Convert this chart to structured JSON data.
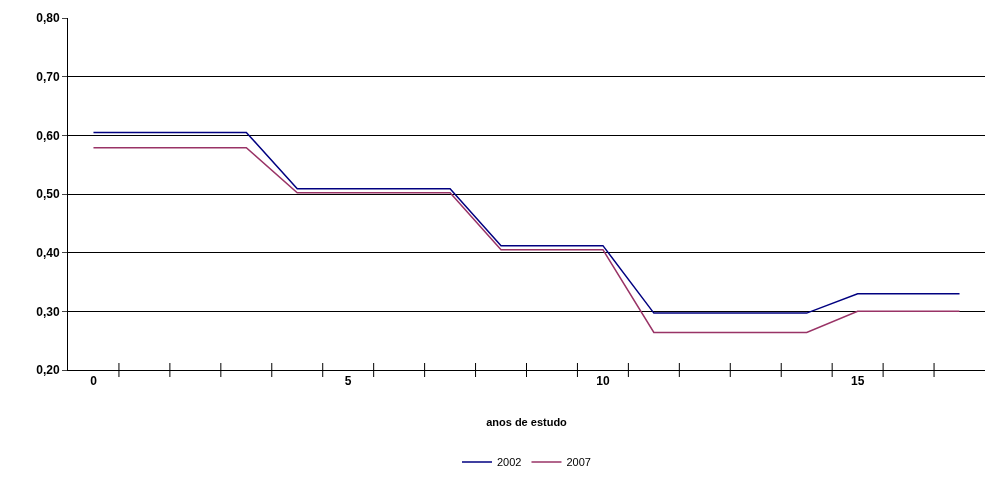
{
  "chart_data": {
    "type": "line",
    "xlabel": "anos de estudo",
    "categories": [
      "0",
      null,
      null,
      null,
      null,
      "5",
      null,
      null,
      null,
      null,
      "10",
      null,
      null,
      null,
      null,
      "15",
      null,
      null
    ],
    "series": [
      {
        "name": "2002",
        "color": "#000080",
        "values": [
          0.605,
          0.605,
          0.605,
          0.605,
          0.509,
          0.509,
          0.509,
          0.509,
          0.412,
          0.412,
          0.412,
          0.297,
          0.297,
          0.297,
          0.297,
          0.33,
          0.33,
          0.33
        ]
      },
      {
        "name": "2007",
        "color": "#993366",
        "values": [
          0.579,
          0.579,
          0.579,
          0.579,
          0.502,
          0.502,
          0.502,
          0.502,
          0.405,
          0.405,
          0.405,
          0.264,
          0.264,
          0.264,
          0.264,
          0.3,
          0.3,
          0.3
        ]
      }
    ],
    "ylim": [
      0.2,
      0.8
    ],
    "yticks": [
      {
        "value": 0.2,
        "label": "0,20"
      },
      {
        "value": 0.3,
        "label": "0,30"
      },
      {
        "value": 0.4,
        "label": "0,40"
      },
      {
        "value": 0.5,
        "label": "0,50"
      },
      {
        "value": 0.6,
        "label": "0,60"
      },
      {
        "value": 0.7,
        "label": "0,70"
      },
      {
        "value": 0.8,
        "label": "0,80"
      }
    ],
    "grid": "y",
    "legend": "bottom",
    "marker": "none",
    "line_style": "solid"
  }
}
